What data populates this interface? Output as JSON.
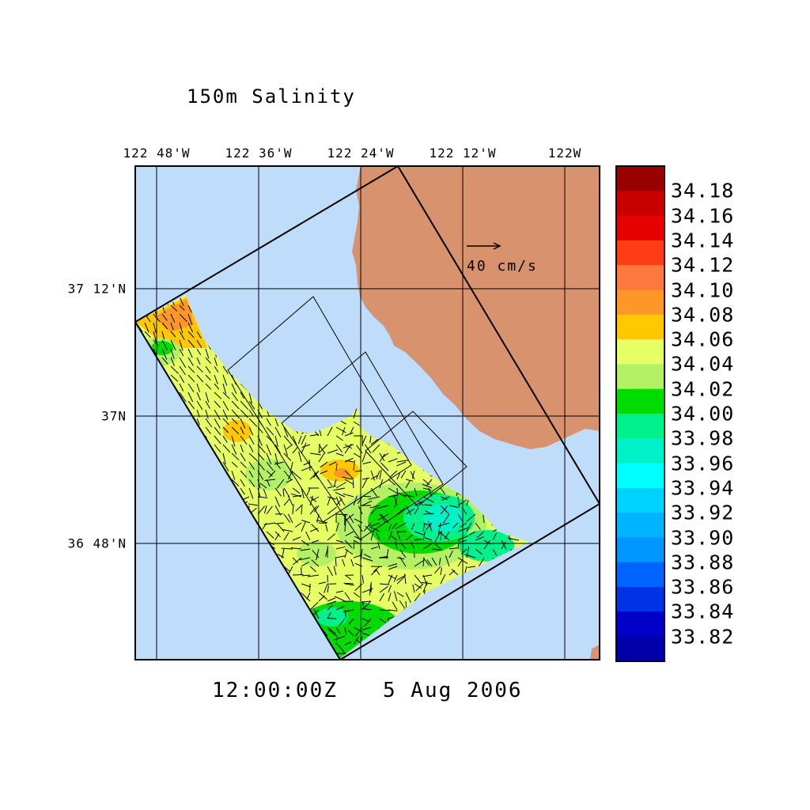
{
  "title": "150m Salinity",
  "time": "12:00:00Z",
  "date": "5 Aug 2006",
  "lon_labels": [
    "122 48'W",
    "122 36'W",
    "122 24'W",
    "122 12'W",
    "122W"
  ],
  "lat_labels": [
    "37 12'N",
    "37N",
    "36 48'N"
  ],
  "vector_scale_label": "40 cm/s",
  "colorbar": {
    "labels": [
      "34.18",
      "34.16",
      "34.14",
      "34.12",
      "34.10",
      "34.08",
      "34.06",
      "34.04",
      "34.02",
      "34.00",
      "33.98",
      "33.96",
      "33.94",
      "33.92",
      "33.90",
      "33.88",
      "33.86",
      "33.84",
      "33.82"
    ],
    "colors": [
      "#990000",
      "#c80000",
      "#e60000",
      "#ff3c14",
      "#ff7840",
      "#ff9628",
      "#ffc800",
      "#e6ff64",
      "#b4f064",
      "#00dc00",
      "#00f08c",
      "#00f0c8",
      "#00ffff",
      "#00d2ff",
      "#00b4ff",
      "#0096ff",
      "#0064ff",
      "#0032e6",
      "#0000c8",
      "#0000aa"
    ]
  },
  "colors": {
    "ocean": "#bfdcfa",
    "land": "#d9926e"
  }
}
